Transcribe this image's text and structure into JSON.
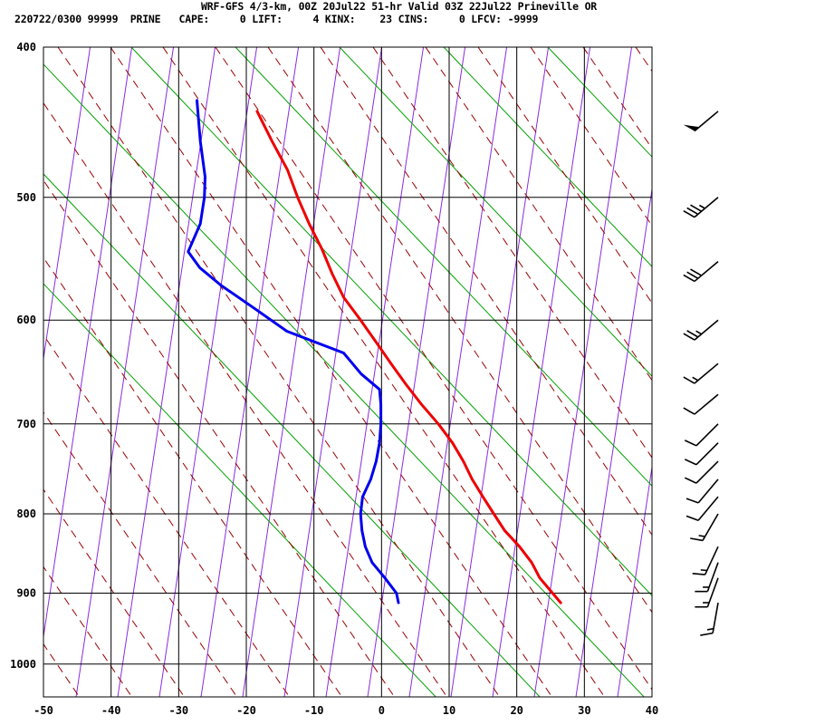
{
  "header": {
    "line1": "WRF-GFS 4/3-km, 00Z 20Jul22 51-hr Valid 03Z 22Jul22 Prineville OR",
    "line2": "220722/0300 99999  PRINE   CAPE:     0 LIFT:     4 KINX:    23 CINS:     0 LFCV: -9999"
  },
  "chart_data": {
    "type": "line",
    "title": "WRF-GFS 4/3-km, 00Z 20Jul22 51-hr Valid 03Z 22Jul22 Prineville OR",
    "xlabel": "",
    "ylabel": "",
    "x_ticks": [
      "-50",
      "-40",
      "-30",
      "-20",
      "-10",
      "0",
      "10",
      "20",
      "30",
      "40"
    ],
    "y_ticks": [
      {
        "p": 400,
        "label": "400"
      },
      {
        "p": 500,
        "label": "500"
      },
      {
        "p": 600,
        "label": "600"
      },
      {
        "p": 700,
        "label": "700"
      },
      {
        "p": 800,
        "label": "800"
      },
      {
        "p": 900,
        "label": "900"
      },
      {
        "p": 1000,
        "label": "1000"
      }
    ],
    "xlim": [
      -50,
      40
    ],
    "ylim": [
      1050,
      400
    ],
    "y_scale": "log-pressure",
    "skew": "temperature isotherms skewed",
    "grid": true,
    "colors": {
      "temperature": "#ee0000",
      "dewpoint": "#0000ee",
      "dry_adiabat": "#990000",
      "moist_adiabat": "#00a000",
      "mixing_ratio": "#8a2be2",
      "grid": "#000000"
    },
    "series": [
      {
        "key": "temperature",
        "color": "#ee0000",
        "points": [
          {
            "p": 913,
            "x": 26.5
          },
          {
            "p": 900,
            "x": 25.3
          },
          {
            "p": 880,
            "x": 23.4
          },
          {
            "p": 860,
            "x": 22.2
          },
          {
            "p": 840,
            "x": 20.4
          },
          {
            "p": 820,
            "x": 18.2
          },
          {
            "p": 800,
            "x": 16.6
          },
          {
            "p": 780,
            "x": 15.0
          },
          {
            "p": 760,
            "x": 13.4
          },
          {
            "p": 740,
            "x": 12.1
          },
          {
            "p": 720,
            "x": 10.5
          },
          {
            "p": 700,
            "x": 8.4
          },
          {
            "p": 680,
            "x": 5.9
          },
          {
            "p": 660,
            "x": 3.6
          },
          {
            "p": 640,
            "x": 1.4
          },
          {
            "p": 620,
            "x": -0.8
          },
          {
            "p": 600,
            "x": -3.1
          },
          {
            "p": 580,
            "x": -5.6
          },
          {
            "p": 560,
            "x": -7.3
          },
          {
            "p": 540,
            "x": -8.8
          },
          {
            "p": 520,
            "x": -10.7
          },
          {
            "p": 500,
            "x": -12.4
          },
          {
            "p": 480,
            "x": -13.9
          },
          {
            "p": 460,
            "x": -16.2
          },
          {
            "p": 440,
            "x": -18.4
          }
        ]
      },
      {
        "key": "dewpoint",
        "color": "#0000ee",
        "points": [
          {
            "p": 913,
            "x": 2.5
          },
          {
            "p": 900,
            "x": 2.2
          },
          {
            "p": 880,
            "x": 0.5
          },
          {
            "p": 860,
            "x": -1.4
          },
          {
            "p": 840,
            "x": -2.4
          },
          {
            "p": 820,
            "x": -2.9
          },
          {
            "p": 800,
            "x": -3.1
          },
          {
            "p": 780,
            "x": -2.8
          },
          {
            "p": 760,
            "x": -1.6
          },
          {
            "p": 740,
            "x": -0.8
          },
          {
            "p": 720,
            "x": -0.3
          },
          {
            "p": 700,
            "x": -0.1
          },
          {
            "p": 680,
            "x": -0.1
          },
          {
            "p": 665,
            "x": -0.3
          },
          {
            "p": 650,
            "x": -3.0
          },
          {
            "p": 630,
            "x": -5.6
          },
          {
            "p": 610,
            "x": -14.0
          },
          {
            "p": 590,
            "x": -18.7
          },
          {
            "p": 570,
            "x": -23.7
          },
          {
            "p": 555,
            "x": -26.9
          },
          {
            "p": 542,
            "x": -28.6
          },
          {
            "p": 520,
            "x": -26.8
          },
          {
            "p": 500,
            "x": -26.2
          },
          {
            "p": 485,
            "x": -26.1
          },
          {
            "p": 460,
            "x": -26.8
          },
          {
            "p": 433,
            "x": -27.3
          }
        ]
      }
    ],
    "wind_barbs": [
      {
        "p": 913,
        "dir": 190,
        "spd": 15
      },
      {
        "p": 880,
        "dir": 200,
        "spd": 15
      },
      {
        "p": 860,
        "dir": 200,
        "spd": 15
      },
      {
        "p": 840,
        "dir": 205,
        "spd": 15
      },
      {
        "p": 800,
        "dir": 210,
        "spd": 15
      },
      {
        "p": 780,
        "dir": 220,
        "spd": 10
      },
      {
        "p": 760,
        "dir": 220,
        "spd": 10
      },
      {
        "p": 740,
        "dir": 225,
        "spd": 10
      },
      {
        "p": 720,
        "dir": 225,
        "spd": 10
      },
      {
        "p": 700,
        "dir": 225,
        "spd": 10
      },
      {
        "p": 670,
        "dir": 230,
        "spd": 10
      },
      {
        "p": 640,
        "dir": 230,
        "spd": 15
      },
      {
        "p": 600,
        "dir": 230,
        "spd": 25
      },
      {
        "p": 550,
        "dir": 230,
        "spd": 30
      },
      {
        "p": 500,
        "dir": 230,
        "spd": 35
      },
      {
        "p": 440,
        "dir": 230,
        "spd": 50
      }
    ]
  }
}
